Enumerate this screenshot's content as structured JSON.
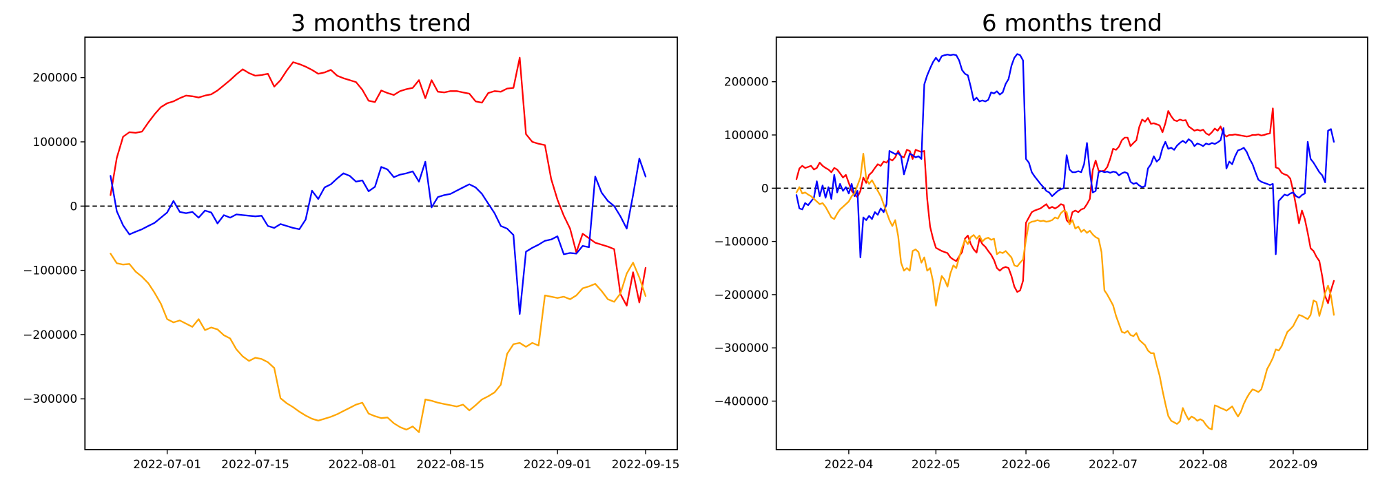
{
  "figure": {
    "background_color": "#ffffff",
    "series_colors": {
      "red": "#ff0000",
      "blue": "#0000ff",
      "orange": "#ffa500"
    },
    "zero_line_color": "#000000"
  },
  "chart_data": [
    {
      "type": "line",
      "title": "3 months trend",
      "xlabel": "",
      "ylabel": "",
      "grid": false,
      "legend": false,
      "zero_line": true,
      "x_start_date": "2022-06-22",
      "x_end_date": "2022-09-15",
      "ylim": [
        -379000,
        263000
      ],
      "x_ticks": [
        {
          "day": 9,
          "label": "2022-07-01"
        },
        {
          "day": 23,
          "label": "2022-07-15"
        },
        {
          "day": 40,
          "label": "2022-08-01"
        },
        {
          "day": 54,
          "label": "2022-08-15"
        },
        {
          "day": 71,
          "label": "2022-09-01"
        },
        {
          "day": 85,
          "label": "2022-09-15"
        }
      ],
      "y_ticks": [
        {
          "value": 200000,
          "label": "200000"
        },
        {
          "value": 100000,
          "label": "100000"
        },
        {
          "value": 0,
          "label": "0"
        },
        {
          "value": -100000,
          "label": "−100000"
        },
        {
          "value": -200000,
          "label": "−200000"
        },
        {
          "value": -300000,
          "label": "−300000"
        }
      ],
      "series": [
        {
          "name": "red",
          "color": "#ff0000",
          "values": [
            17000,
            75000,
            108000,
            115000,
            114000,
            116000,
            130000,
            143000,
            154000,
            160000,
            163000,
            168000,
            172000,
            171000,
            169000,
            172000,
            174000,
            180000,
            188000,
            196000,
            205000,
            213000,
            207000,
            203000,
            204000,
            206000,
            186000,
            196000,
            211000,
            224000,
            221000,
            217000,
            212000,
            206000,
            208000,
            212000,
            203000,
            199000,
            196000,
            193000,
            181000,
            164000,
            162000,
            180000,
            176000,
            173000,
            179000,
            182000,
            184000,
            196000,
            168000,
            196000,
            178000,
            177000,
            179000,
            179000,
            177000,
            175000,
            163000,
            161000,
            176000,
            179000,
            178000,
            183000,
            184000,
            231000,
            112000,
            100000,
            97000,
            95000,
            42000,
            10000,
            -15000,
            -35000,
            -72000,
            -43000,
            -50000,
            -57000,
            -60000,
            -63000,
            -67000,
            -137000,
            -155000,
            -103000,
            -150000,
            -96000
          ]
        },
        {
          "name": "blue",
          "color": "#0000ff",
          "values": [
            47000,
            -8000,
            -30000,
            -44000,
            -40000,
            -36000,
            -31000,
            -26000,
            -18000,
            -10000,
            8000,
            -9000,
            -11000,
            -9000,
            -18000,
            -7000,
            -10000,
            -27000,
            -14000,
            -18000,
            -13000,
            -14000,
            -15000,
            -16000,
            -15000,
            -31000,
            -34000,
            -28000,
            -31000,
            -34000,
            -36000,
            -21000,
            24000,
            11000,
            29000,
            34000,
            43000,
            51000,
            47000,
            38000,
            40000,
            23000,
            30000,
            61000,
            57000,
            45000,
            49000,
            51000,
            54000,
            38000,
            69000,
            -2000,
            14000,
            17000,
            19000,
            24000,
            29000,
            34000,
            29000,
            19000,
            4000,
            -11000,
            -31000,
            -35000,
            -45000,
            -168000,
            -71000,
            -65000,
            -60000,
            -54000,
            -52000,
            -47000,
            -75000,
            -73000,
            -74000,
            -62000,
            -64000,
            46000,
            21000,
            8000,
            0,
            -16000,
            -35000,
            17000,
            74000,
            46000
          ]
        },
        {
          "name": "orange",
          "color": "#ffa500",
          "values": [
            -74000,
            -89000,
            -91000,
            -90000,
            -102000,
            -110000,
            -120000,
            -135000,
            -152000,
            -176000,
            -181000,
            -178000,
            -183000,
            -188000,
            -176000,
            -193000,
            -189000,
            -192000,
            -201000,
            -206000,
            -223000,
            -234000,
            -241000,
            -236000,
            -238000,
            -243000,
            -252000,
            -299000,
            -307000,
            -313000,
            -320000,
            -326000,
            -331000,
            -334000,
            -331000,
            -328000,
            -324000,
            -319000,
            -314000,
            -309000,
            -306000,
            -323000,
            -327000,
            -330000,
            -329000,
            -338000,
            -344000,
            -348000,
            -343000,
            -352000,
            -301000,
            -303000,
            -306000,
            -308000,
            -310000,
            -312000,
            -309000,
            -318000,
            -310000,
            -301000,
            -296000,
            -290000,
            -278000,
            -230000,
            -215000,
            -213000,
            -219000,
            -213000,
            -217000,
            -139000,
            -141000,
            -143000,
            -141000,
            -145000,
            -139000,
            -128000,
            -125000,
            -121000,
            -132000,
            -145000,
            -149000,
            -136000,
            -105000,
            -88000,
            -111000,
            -140000
          ]
        }
      ]
    },
    {
      "type": "line",
      "title": "6 months trend",
      "xlabel": "",
      "ylabel": "",
      "grid": false,
      "legend": false,
      "zero_line": true,
      "x_start_date": "2022-03-14",
      "x_end_date": "2022-09-15",
      "ylim": [
        -491000,
        282000
      ],
      "x_ticks": [
        {
          "day": 18,
          "label": "2022-04"
        },
        {
          "day": 48,
          "label": "2022-05"
        },
        {
          "day": 79,
          "label": "2022-06"
        },
        {
          "day": 109,
          "label": "2022-07"
        },
        {
          "day": 140,
          "label": "2022-08"
        },
        {
          "day": 171,
          "label": "2022-09"
        }
      ],
      "y_ticks": [
        {
          "value": 200000,
          "label": "200000"
        },
        {
          "value": 100000,
          "label": "100000"
        },
        {
          "value": 0,
          "label": "0"
        },
        {
          "value": -100000,
          "label": "−100000"
        },
        {
          "value": -200000,
          "label": "−200000"
        },
        {
          "value": -300000,
          "label": "−300000"
        },
        {
          "value": -400000,
          "label": "−400000"
        }
      ],
      "series": [
        {
          "name": "red",
          "color": "#ff0000",
          "values": [
            17000,
            37000,
            42000,
            38000,
            40000,
            42000,
            35000,
            38000,
            48000,
            42000,
            38000,
            35000,
            30000,
            38000,
            35000,
            28000,
            20000,
            25000,
            10000,
            -5000,
            -12000,
            -17000,
            -5000,
            20000,
            10000,
            25000,
            30000,
            38000,
            45000,
            42000,
            50000,
            48000,
            55000,
            52000,
            58000,
            70000,
            60000,
            58000,
            72000,
            70000,
            55000,
            72000,
            70000,
            68000,
            70000,
            -20000,
            -72000,
            -95000,
            -112000,
            -115000,
            -118000,
            -120000,
            -122000,
            -130000,
            -134000,
            -137000,
            -128000,
            -120000,
            -95000,
            -89000,
            -105000,
            -115000,
            -121000,
            -95000,
            -105000,
            -110000,
            -118000,
            -125000,
            -135000,
            -150000,
            -155000,
            -150000,
            -148000,
            -150000,
            -165000,
            -185000,
            -195000,
            -192000,
            -174000,
            -65000,
            -55000,
            -45000,
            -42000,
            -40000,
            -38000,
            -34000,
            -30000,
            -38000,
            -35000,
            -38000,
            -35000,
            -30000,
            -32000,
            -60000,
            -66000,
            -45000,
            -42000,
            -45000,
            -40000,
            -38000,
            -30000,
            -20000,
            34000,
            52000,
            33000,
            32000,
            33000,
            40000,
            55000,
            74000,
            72000,
            78000,
            90000,
            95000,
            95000,
            79000,
            85000,
            90000,
            115000,
            129000,
            125000,
            132000,
            121000,
            122000,
            120000,
            118000,
            105000,
            122000,
            145000,
            135000,
            128000,
            126000,
            129000,
            127000,
            128000,
            116000,
            112000,
            108000,
            110000,
            108000,
            110000,
            103000,
            100000,
            105000,
            112000,
            108000,
            116000,
            102000,
            97000,
            100000,
            100000,
            101000,
            100000,
            99000,
            98000,
            97000,
            98000,
            100000,
            100000,
            101000,
            99000,
            100000,
            102000,
            103000,
            150000,
            39000,
            37000,
            29000,
            26000,
            24000,
            18000,
            -5000,
            -34000,
            -66000,
            -42000,
            -58000,
            -84000,
            -113000,
            -118000,
            -129000,
            -137000,
            -166000,
            -203000,
            -216000,
            -192000,
            -174000
          ]
        },
        {
          "name": "blue",
          "color": "#0000ff",
          "values": [
            -13000,
            -38000,
            -40000,
            -28000,
            -32000,
            -25000,
            -18000,
            13000,
            -15000,
            5000,
            -18000,
            2000,
            -20000,
            25000,
            -8000,
            8000,
            -5000,
            2000,
            -10000,
            8000,
            -15000,
            -5000,
            -130000,
            -55000,
            -60000,
            -52000,
            -58000,
            -45000,
            -50000,
            -38000,
            -45000,
            -30000,
            70000,
            67000,
            64000,
            66000,
            60000,
            26000,
            45000,
            65000,
            62000,
            58000,
            60000,
            55000,
            195000,
            212000,
            225000,
            237000,
            245000,
            238000,
            248000,
            250000,
            251000,
            250000,
            251000,
            250000,
            240000,
            222000,
            215000,
            212000,
            190000,
            165000,
            170000,
            163000,
            165000,
            163000,
            166000,
            180000,
            178000,
            182000,
            176000,
            180000,
            196000,
            205000,
            230000,
            245000,
            252000,
            250000,
            240000,
            55000,
            48000,
            30000,
            22000,
            15000,
            8000,
            2000,
            -5000,
            -8000,
            -15000,
            -10000,
            -5000,
            -2000,
            0,
            62000,
            35000,
            30000,
            30000,
            32000,
            30000,
            45000,
            85000,
            30000,
            -8000,
            -5000,
            30000,
            32000,
            30000,
            31000,
            29000,
            31000,
            30000,
            24000,
            28000,
            30000,
            28000,
            12000,
            8000,
            10000,
            5000,
            2000,
            4000,
            37000,
            45000,
            60000,
            50000,
            55000,
            75000,
            87000,
            74000,
            76000,
            72000,
            80000,
            85000,
            89000,
            85000,
            92000,
            88000,
            79000,
            84000,
            82000,
            79000,
            84000,
            82000,
            85000,
            83000,
            86000,
            90000,
            113000,
            37000,
            50000,
            45000,
            60000,
            71000,
            73000,
            76000,
            68000,
            55000,
            45000,
            30000,
            16000,
            12000,
            10000,
            8000,
            6000,
            8000,
            -124000,
            -24000,
            -18000,
            -12000,
            -14000,
            -10000,
            -8000,
            -15000,
            -18000,
            -13000,
            -10000,
            87000,
            55000,
            48000,
            39000,
            30000,
            24000,
            11000,
            108000,
            111000,
            87000
          ]
        },
        {
          "name": "orange",
          "color": "#ffa500",
          "values": [
            -8000,
            2000,
            -10000,
            -8000,
            -12000,
            -15000,
            -20000,
            -25000,
            -30000,
            -28000,
            -35000,
            -45000,
            -55000,
            -58000,
            -48000,
            -40000,
            -35000,
            -30000,
            -25000,
            -15000,
            -10000,
            5000,
            20000,
            65000,
            18000,
            8000,
            15000,
            5000,
            -5000,
            -15000,
            -30000,
            -45000,
            -60000,
            -71000,
            -60000,
            -90000,
            -140000,
            -155000,
            -150000,
            -155000,
            -118000,
            -115000,
            -120000,
            -140000,
            -130000,
            -155000,
            -150000,
            -175000,
            -221000,
            -190000,
            -165000,
            -172000,
            -185000,
            -160000,
            -145000,
            -150000,
            -130000,
            -112000,
            -97000,
            -105000,
            -92000,
            -88000,
            -95000,
            -89000,
            -100000,
            -95000,
            -93000,
            -97000,
            -95000,
            -124000,
            -120000,
            -122000,
            -118000,
            -124000,
            -130000,
            -145000,
            -147000,
            -140000,
            -134000,
            -97000,
            -66000,
            -63000,
            -62000,
            -60000,
            -62000,
            -61000,
            -63000,
            -62000,
            -60000,
            -55000,
            -57000,
            -47000,
            -42000,
            -45000,
            -68000,
            -60000,
            -76000,
            -72000,
            -82000,
            -78000,
            -84000,
            -80000,
            -87000,
            -92000,
            -95000,
            -120000,
            -192000,
            -200000,
            -210000,
            -220000,
            -240000,
            -255000,
            -270000,
            -272000,
            -268000,
            -276000,
            -278000,
            -272000,
            -285000,
            -290000,
            -295000,
            -305000,
            -310000,
            -310000,
            -332000,
            -352000,
            -380000,
            -405000,
            -428000,
            -437000,
            -440000,
            -443000,
            -438000,
            -413000,
            -425000,
            -435000,
            -429000,
            -432000,
            -437000,
            -434000,
            -437000,
            -445000,
            -451000,
            -453000,
            -408000,
            -410000,
            -413000,
            -415000,
            -418000,
            -414000,
            -410000,
            -420000,
            -429000,
            -420000,
            -405000,
            -394000,
            -385000,
            -378000,
            -380000,
            -383000,
            -378000,
            -360000,
            -340000,
            -330000,
            -319000,
            -303000,
            -305000,
            -297000,
            -283000,
            -270000,
            -265000,
            -259000,
            -248000,
            -238000,
            -240000,
            -243000,
            -246000,
            -238000,
            -211000,
            -214000,
            -240000,
            -221000,
            -197000,
            -183000,
            -202000,
            -238000
          ]
        }
      ]
    }
  ]
}
